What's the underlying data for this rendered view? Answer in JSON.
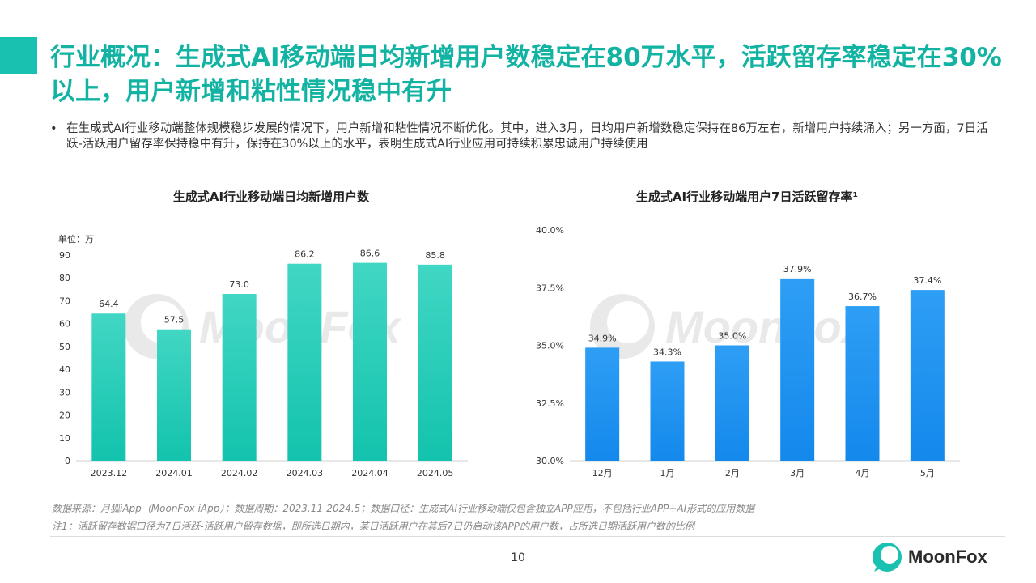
{
  "title": "行业概况：生成式AI移动端日均新增用户数稳定在80万水平，活跃留存率稳定在30%以上，用户新增和粘性情况稳中有升",
  "bullet": {
    "dot": "•",
    "text": "在生成式AI行业移动端整体规模稳步发展的情况下，用户新增和粘性情况不断优化。其中，进入3月，日均用户新增数稳定保持在86万左右，新增用户持续涌入；另一方面，7日活跃-活跃用户留存率保持稳中有升，保持在30%以上的水平，表明生成式AI行业应用可持续积累忠诚用户持续使用"
  },
  "chart_data": [
    {
      "type": "bar",
      "title": "生成式AI行业移动端日均新增用户数",
      "unit_label": "单位：万",
      "categories": [
        "2023.12",
        "2024.01",
        "2024.02",
        "2024.03",
        "2024.04",
        "2024.05"
      ],
      "values": [
        64.4,
        57.5,
        73.0,
        86.2,
        86.6,
        85.8
      ],
      "value_labels": [
        "64.4",
        "57.5",
        "73.0",
        "86.2",
        "86.6",
        "85.8"
      ],
      "ylim": [
        0,
        90
      ],
      "yticks": [
        "0",
        "10",
        "20",
        "30",
        "40",
        "50",
        "60",
        "70",
        "80",
        "90"
      ],
      "grid": false,
      "color_top": "#41d7c4",
      "color_bottom": "#13c3ad"
    },
    {
      "type": "bar",
      "title": "生成式AI行业移动端用户7日活跃留存率¹",
      "categories": [
        "12月",
        "1月",
        "2月",
        "3月",
        "4月",
        "5月"
      ],
      "values": [
        34.9,
        34.3,
        35.0,
        37.9,
        36.7,
        37.4
      ],
      "value_labels": [
        "34.9%",
        "34.3%",
        "35.0%",
        "37.9%",
        "36.7%",
        "37.4%"
      ],
      "ylim": [
        30,
        40
      ],
      "yticks": [
        "30.0%",
        "32.5%",
        "35.0%",
        "37.5%",
        "40.0%"
      ],
      "grid": false,
      "color_top": "#2e9ef5",
      "color_bottom": "#1489ec"
    }
  ],
  "notes": [
    "数据来源：月狐iApp（MoonFox iApp）；数据周期：2023.11-2024.5；数据口径：生成式AI行业移动端仅包含独立APP应用，不包括行业APP+AI形式的应用数据",
    "注1：活跃留存数据口径为7日活跃-活跃用户留存数据，即所选日期内，某日活跃用户在其后7日仍启动该APP的用户数，占所选日期活跃用户数的比例"
  ],
  "page_number": "10",
  "brand": {
    "name": "MoonFox",
    "color": "#19c2b0"
  },
  "watermark": "MoonFox"
}
